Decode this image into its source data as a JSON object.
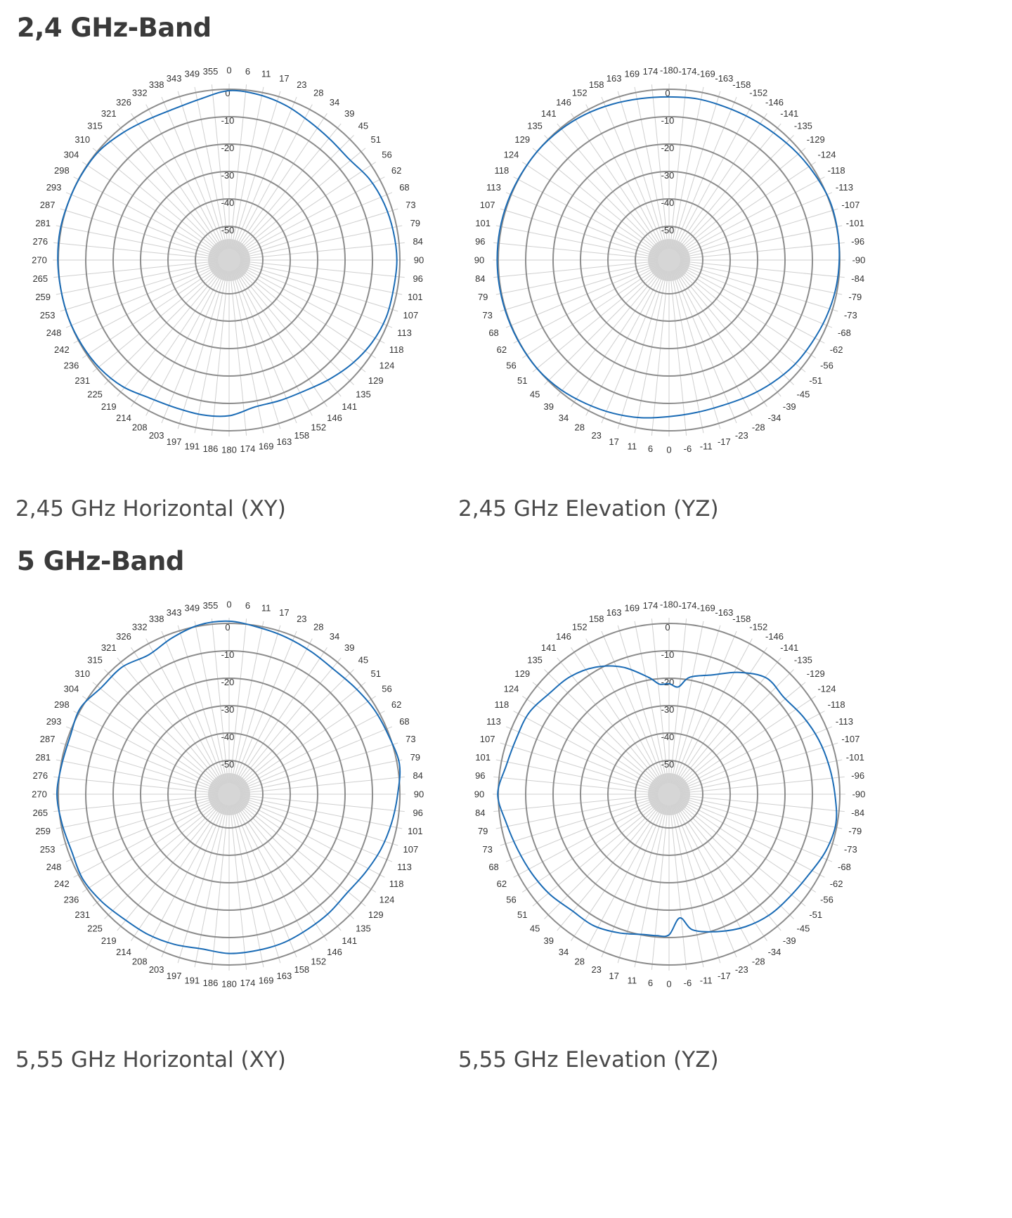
{
  "sections": [
    {
      "title": "2,4 GHz-Band",
      "charts": [
        {
          "caption": "2,45 GHz Horizontal (XY)"
        },
        {
          "caption": "2,45 GHz Elevation (YZ)"
        }
      ]
    },
    {
      "title": "5 GHz-Band",
      "charts": [
        {
          "caption": "5,55 GHz Horizontal (XY)"
        },
        {
          "caption": "5,55 GHz Elevation (YZ)"
        }
      ]
    }
  ],
  "colors": {
    "trace": "#1a6bb5",
    "ring": "#8c8c8c",
    "spoke": "#cfcfcf",
    "center": "#d6d6d6"
  },
  "chart_data": [
    {
      "type": "polar-line",
      "caption": "2,45 GHz Horizontal (XY)",
      "angle_unit": "deg",
      "angle_labels": [
        "0",
        "6",
        "11",
        "17",
        "23",
        "28",
        "34",
        "39",
        "45",
        "51",
        "56",
        "62",
        "68",
        "73",
        "79",
        "84",
        "90",
        "96",
        "101",
        "107",
        "113",
        "118",
        "124",
        "129",
        "135",
        "141",
        "146",
        "152",
        "158",
        "163",
        "169",
        "174",
        "180",
        "186",
        "191",
        "197",
        "203",
        "208",
        "214",
        "219",
        "225",
        "231",
        "236",
        "242",
        "248",
        "253",
        "259",
        "265",
        "270",
        "276",
        "281",
        "287",
        "293",
        "298",
        "304",
        "310",
        "315",
        "321",
        "326",
        "332",
        "338",
        "343",
        "349",
        "355"
      ],
      "rlim": [
        -50,
        0
      ],
      "ring_labels": [
        "0",
        "-10",
        "-20",
        "-30",
        "-40",
        "-50"
      ],
      "series": [
        {
          "angles": [
            0,
            10,
            20,
            30,
            40,
            50,
            60,
            70,
            80,
            90,
            100,
            110,
            120,
            130,
            140,
            150,
            160,
            170,
            180,
            190,
            200,
            210,
            220,
            230,
            240,
            250,
            260,
            270,
            280,
            290,
            300,
            310,
            320,
            330,
            340,
            350
          ],
          "values": [
            -0.5,
            -1.0,
            -2.2,
            -3.9,
            -4.9,
            -5.1,
            -3.2,
            -2.1,
            -1.5,
            -1.1,
            -1.4,
            -1.3,
            -2.1,
            -3.6,
            -5.5,
            -7.2,
            -7.8,
            -7.9,
            -5.5,
            -5.0,
            -5.0,
            -4.2,
            -2.0,
            -0.8,
            -0.3,
            0.0,
            0.0,
            0.2,
            0.3,
            0.0,
            -0.1,
            -0.4,
            -1.8,
            -3.1,
            -3.6,
            -2.6
          ]
        }
      ]
    },
    {
      "type": "polar-line",
      "caption": "2,45 GHz Elevation (YZ)",
      "angle_unit": "deg",
      "angle_labels": [
        "-180",
        "-174",
        "-169",
        "-163",
        "-158",
        "-152",
        "-146",
        "-141",
        "-135",
        "-129",
        "-124",
        "-118",
        "-113",
        "-107",
        "-101",
        "-96",
        "-90",
        "-84",
        "-79",
        "-73",
        "-68",
        "-62",
        "-56",
        "-51",
        "-45",
        "-39",
        "-34",
        "-28",
        "-23",
        "-17",
        "-11",
        "-6",
        "0",
        "6",
        "11",
        "17",
        "23",
        "28",
        "34",
        "39",
        "45",
        "51",
        "56",
        "62",
        "68",
        "73",
        "79",
        "84",
        "90",
        "96",
        "101",
        "107",
        "113",
        "118",
        "124",
        "129",
        "135",
        "141",
        "146",
        "152",
        "158",
        "163",
        "169",
        "174"
      ],
      "rlim": [
        -50,
        0
      ],
      "ring_labels": [
        "0",
        "-10",
        "-20",
        "-30",
        "-40",
        "-50"
      ],
      "series": [
        {
          "angles": [
            -180,
            -170,
            -160,
            -150,
            -140,
            -130,
            -120,
            -110,
            -100,
            -90,
            -80,
            -70,
            -60,
            -50,
            -40,
            -30,
            -20,
            -10,
            0,
            10,
            20,
            30,
            40,
            50,
            60,
            70,
            80,
            90,
            100,
            110,
            120,
            130,
            140,
            150,
            160,
            170
          ],
          "values": [
            -2.8,
            -2.6,
            -2.8,
            -2.6,
            -2.2,
            -1.4,
            -0.6,
            0.2,
            0.1,
            -0.2,
            -0.6,
            -1.3,
            -2.1,
            -2.7,
            -3.8,
            -4.9,
            -5.8,
            -5.8,
            -5.2,
            -3.9,
            -2.8,
            -1.8,
            -0.7,
            0.0,
            0.1,
            0.2,
            0.3,
            0.4,
            0.4,
            0.3,
            0.1,
            0.0,
            -0.4,
            -1.0,
            -1.8,
            -2.5
          ]
        }
      ]
    },
    {
      "type": "polar-line",
      "caption": "5,55 GHz Horizontal (XY)",
      "angle_unit": "deg",
      "angle_labels": [
        "0",
        "6",
        "11",
        "17",
        "23",
        "28",
        "34",
        "39",
        "45",
        "51",
        "56",
        "62",
        "68",
        "73",
        "79",
        "84",
        "90",
        "96",
        "101",
        "107",
        "113",
        "118",
        "124",
        "129",
        "135",
        "141",
        "146",
        "152",
        "158",
        "163",
        "169",
        "174",
        "180",
        "186",
        "191",
        "197",
        "203",
        "208",
        "214",
        "219",
        "225",
        "231",
        "236",
        "242",
        "248",
        "253",
        "259",
        "265",
        "270",
        "276",
        "281",
        "287",
        "293",
        "298",
        "304",
        "310",
        "315",
        "321",
        "326",
        "332",
        "338",
        "343",
        "349",
        "355"
      ],
      "rlim": [
        -50,
        0
      ],
      "ring_labels": [
        "0",
        "-10",
        "-20",
        "-30",
        "-40",
        "-50"
      ],
      "series": [
        {
          "angles": [
            0,
            10,
            20,
            30,
            40,
            50,
            60,
            70,
            80,
            90,
            100,
            110,
            120,
            130,
            140,
            150,
            160,
            170,
            180,
            190,
            200,
            210,
            220,
            230,
            240,
            250,
            260,
            270,
            280,
            290,
            300,
            310,
            320,
            330,
            340,
            350
          ],
          "values": [
            0.8,
            -0.5,
            -1.4,
            -2.3,
            -2.9,
            -2.1,
            -1.0,
            -0.3,
            0.8,
            -0.8,
            -2.1,
            -3.4,
            -5.0,
            -6.2,
            -5.7,
            -5.3,
            -4.6,
            -4.4,
            -4.2,
            -5.0,
            -4.0,
            -3.2,
            -2.8,
            -1.5,
            -0.6,
            -1.2,
            -0.4,
            0.5,
            -0.3,
            -0.6,
            0.4,
            -1.6,
            -1.7,
            -3.6,
            -1.6,
            0.4
          ]
        }
      ]
    },
    {
      "type": "polar-line",
      "caption": "5,55 GHz Elevation (YZ)",
      "angle_unit": "deg",
      "angle_labels": [
        "-180",
        "-174",
        "-169",
        "-163",
        "-158",
        "-152",
        "-146",
        "-141",
        "-135",
        "-129",
        "-124",
        "-118",
        "-113",
        "-107",
        "-101",
        "-96",
        "-90",
        "-84",
        "-79",
        "-73",
        "-68",
        "-62",
        "-56",
        "-51",
        "-45",
        "-39",
        "-34",
        "-28",
        "-23",
        "-17",
        "-11",
        "-6",
        "0",
        "6",
        "11",
        "17",
        "23",
        "28",
        "34",
        "39",
        "45",
        "51",
        "56",
        "62",
        "68",
        "73",
        "79",
        "84",
        "90",
        "96",
        "101",
        "107",
        "113",
        "118",
        "124",
        "129",
        "135",
        "141",
        "146",
        "152",
        "158",
        "163",
        "169",
        "174"
      ],
      "rlim": [
        -50,
        0
      ],
      "ring_labels": [
        "0",
        "-10",
        "-20",
        "-30",
        "-40",
        "-50"
      ],
      "series": [
        {
          "angles": [
            -180,
            -175,
            -170,
            -160,
            -150,
            -140,
            -130,
            -120,
            -110,
            -100,
            -90,
            -80,
            -70,
            -60,
            -50,
            -40,
            -30,
            -20,
            -10,
            -5,
            0,
            5,
            10,
            20,
            30,
            40,
            50,
            60,
            70,
            80,
            90,
            100,
            110,
            120,
            130,
            140,
            150,
            160,
            170,
            175
          ],
          "values": [
            -22,
            -23,
            -19,
            -16,
            -11,
            -7,
            -7.5,
            -5.8,
            -4.2,
            -3,
            -1.8,
            -0.5,
            -1.5,
            -3.5,
            -4.5,
            -5.0,
            -6.5,
            -9,
            -12,
            -17,
            -11,
            -10.5,
            -10.3,
            -8.5,
            -7,
            -7,
            -5.5,
            -4.5,
            -3.5,
            -2,
            0.2,
            -2,
            -3,
            -3.2,
            -5.2,
            -6.3,
            -8.8,
            -13,
            -19,
            -22
          ]
        }
      ]
    }
  ]
}
